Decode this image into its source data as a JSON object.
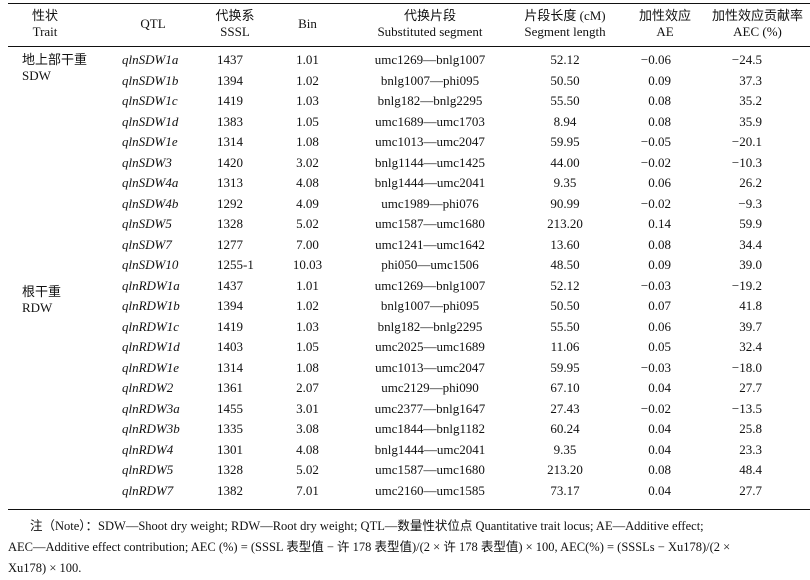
{
  "header": {
    "trait": [
      "性状",
      "Trait"
    ],
    "qtl": [
      "QTL"
    ],
    "sssl": [
      "代换系",
      "SSSL"
    ],
    "bin": [
      "Bin"
    ],
    "segment": [
      "代换片段",
      "Substituted segment"
    ],
    "length": [
      "片段长度 (cM)",
      "Segment length"
    ],
    "ae": [
      "加性效应",
      "AE"
    ],
    "aec": [
      "加性效应贡献率",
      "AEC (%)"
    ]
  },
  "groups": [
    {
      "label_cn": "地上部干重",
      "label_en": "SDW",
      "start_row": 0
    },
    {
      "label_cn": "根干重",
      "label_en": "RDW",
      "start_row": 11
    }
  ],
  "rows": [
    {
      "qtl": "qlnSDW1a",
      "sssl": "1437",
      "bin": "1.01",
      "segment": "umc1269—bnlg1007",
      "length": "52.12",
      "ae": "−0.06",
      "aec": "−24.5"
    },
    {
      "qtl": "qlnSDW1b",
      "sssl": "1394",
      "bin": "1.02",
      "segment": "bnlg1007—phi095",
      "length": "50.50",
      "ae": "0.09",
      "aec": "37.3"
    },
    {
      "qtl": "qlnSDW1c",
      "sssl": "1419",
      "bin": "1.03",
      "segment": "bnlg182—bnlg2295",
      "length": "55.50",
      "ae": "0.08",
      "aec": "35.2"
    },
    {
      "qtl": "qlnSDW1d",
      "sssl": "1383",
      "bin": "1.05",
      "segment": "umc1689—umc1703",
      "length": "8.94",
      "ae": "0.08",
      "aec": "35.9"
    },
    {
      "qtl": "qlnSDW1e",
      "sssl": "1314",
      "bin": "1.08",
      "segment": "umc1013—umc2047",
      "length": "59.95",
      "ae": "−0.05",
      "aec": "−20.1"
    },
    {
      "qtl": "qlnSDW3",
      "sssl": "1420",
      "bin": "3.02",
      "segment": "bnlg1144—umc1425",
      "length": "44.00",
      "ae": "−0.02",
      "aec": "−10.3"
    },
    {
      "qtl": "qlnSDW4a",
      "sssl": "1313",
      "bin": "4.08",
      "segment": "bnlg1444—umc2041",
      "length": "9.35",
      "ae": "0.06",
      "aec": "26.2"
    },
    {
      "qtl": "qlnSDW4b",
      "sssl": "1292",
      "bin": "4.09",
      "segment": "umc1989—phi076",
      "length": "90.99",
      "ae": "−0.02",
      "aec": "−9.3"
    },
    {
      "qtl": "qlnSDW5",
      "sssl": "1328",
      "bin": "5.02",
      "segment": "umc1587—umc1680",
      "length": "213.20",
      "ae": "0.14",
      "aec": "59.9"
    },
    {
      "qtl": "qlnSDW7",
      "sssl": "1277",
      "bin": "7.00",
      "segment": "umc1241—umc1642",
      "length": "13.60",
      "ae": "0.08",
      "aec": "34.4"
    },
    {
      "qtl": "qlnSDW10",
      "sssl": "1255-1",
      "bin": "10.03",
      "segment": "phi050—umc1506",
      "length": "48.50",
      "ae": "0.09",
      "aec": "39.0"
    },
    {
      "qtl": "qlnRDW1a",
      "sssl": "1437",
      "bin": "1.01",
      "segment": "umc1269—bnlg1007",
      "length": "52.12",
      "ae": "−0.03",
      "aec": "−19.2"
    },
    {
      "qtl": "qlnRDW1b",
      "sssl": "1394",
      "bin": "1.02",
      "segment": "bnlg1007—phi095",
      "length": "50.50",
      "ae": "0.07",
      "aec": "41.8"
    },
    {
      "qtl": "qlnRDW1c",
      "sssl": "1419",
      "bin": "1.03",
      "segment": "bnlg182—bnlg2295",
      "length": "55.50",
      "ae": "0.06",
      "aec": "39.7"
    },
    {
      "qtl": "qlnRDW1d",
      "sssl": "1403",
      "bin": "1.05",
      "segment": "umc2025—umc1689",
      "length": "11.06",
      "ae": "0.05",
      "aec": "32.4"
    },
    {
      "qtl": "qlnRDW1e",
      "sssl": "1314",
      "bin": "1.08",
      "segment": "umc1013—umc2047",
      "length": "59.95",
      "ae": "−0.03",
      "aec": "−18.0"
    },
    {
      "qtl": "qlnRDW2",
      "sssl": "1361",
      "bin": "2.07",
      "segment": "umc2129—phi090",
      "length": "67.10",
      "ae": "0.04",
      "aec": "27.7"
    },
    {
      "qtl": "qlnRDW3a",
      "sssl": "1455",
      "bin": "3.01",
      "segment": "umc2377—bnlg1647",
      "length": "27.43",
      "ae": "−0.02",
      "aec": "−13.5"
    },
    {
      "qtl": "qlnRDW3b",
      "sssl": "1335",
      "bin": "3.08",
      "segment": "umc1844—bnlg1182",
      "length": "60.24",
      "ae": "0.04",
      "aec": "25.8"
    },
    {
      "qtl": "qlnRDW4",
      "sssl": "1301",
      "bin": "4.08",
      "segment": "bnlg1444—umc2041",
      "length": "9.35",
      "ae": "0.04",
      "aec": "23.3"
    },
    {
      "qtl": "qlnRDW5",
      "sssl": "1328",
      "bin": "5.02",
      "segment": "umc1587—umc1680",
      "length": "213.20",
      "ae": "0.08",
      "aec": "48.4"
    },
    {
      "qtl": "qlnRDW7",
      "sssl": "1382",
      "bin": "7.01",
      "segment": "umc2160—umc1585",
      "length": "73.17",
      "ae": "0.04",
      "aec": "27.7"
    }
  ],
  "note": {
    "line1": "注（Note）：SDW—Shoot dry weight; RDW—Root dry weight; QTL—数量性状位点 Quantitative trait locus; AE—Additive effect;",
    "line2": "AEC—Additive effect contribution; AEC (%) = (SSSL 表型值 − 许 178 表型值)/(2 × 许 178 表型值) × 100, AEC(%) = (SSSLs − Xu178)/(2 ×",
    "line3": "Xu178) × 100."
  }
}
